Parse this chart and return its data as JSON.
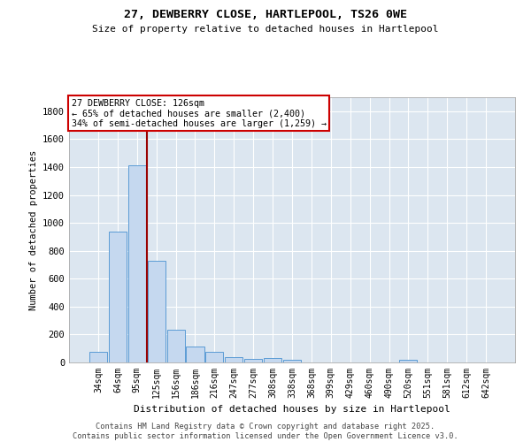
{
  "title_line1": "27, DEWBERRY CLOSE, HARTLEPOOL, TS26 0WE",
  "title_line2": "Size of property relative to detached houses in Hartlepool",
  "xlabel": "Distribution of detached houses by size in Hartlepool",
  "ylabel": "Number of detached properties",
  "categories": [
    "34sqm",
    "64sqm",
    "95sqm",
    "125sqm",
    "156sqm",
    "186sqm",
    "216sqm",
    "247sqm",
    "277sqm",
    "308sqm",
    "338sqm",
    "368sqm",
    "399sqm",
    "429sqm",
    "460sqm",
    "490sqm",
    "520sqm",
    "551sqm",
    "581sqm",
    "612sqm",
    "642sqm"
  ],
  "values": [
    75,
    940,
    1410,
    730,
    235,
    115,
    75,
    40,
    25,
    30,
    20,
    0,
    0,
    0,
    0,
    0,
    20,
    0,
    0,
    0,
    0
  ],
  "bar_color": "#c5d8ef",
  "bar_edge_color": "#5b9bd5",
  "bg_color": "#dce6f0",
  "grid_color": "#ffffff",
  "annotation_line1": "27 DEWBERRY CLOSE: 126sqm",
  "annotation_line2": "← 65% of detached houses are smaller (2,400)",
  "annotation_line3": "34% of semi-detached houses are larger (1,259) →",
  "ylim": [
    0,
    1900
  ],
  "yticks": [
    0,
    200,
    400,
    600,
    800,
    1000,
    1200,
    1400,
    1600,
    1800
  ],
  "footnote1": "Contains HM Land Registry data © Crown copyright and database right 2025.",
  "footnote2": "Contains public sector information licensed under the Open Government Licence v3.0."
}
